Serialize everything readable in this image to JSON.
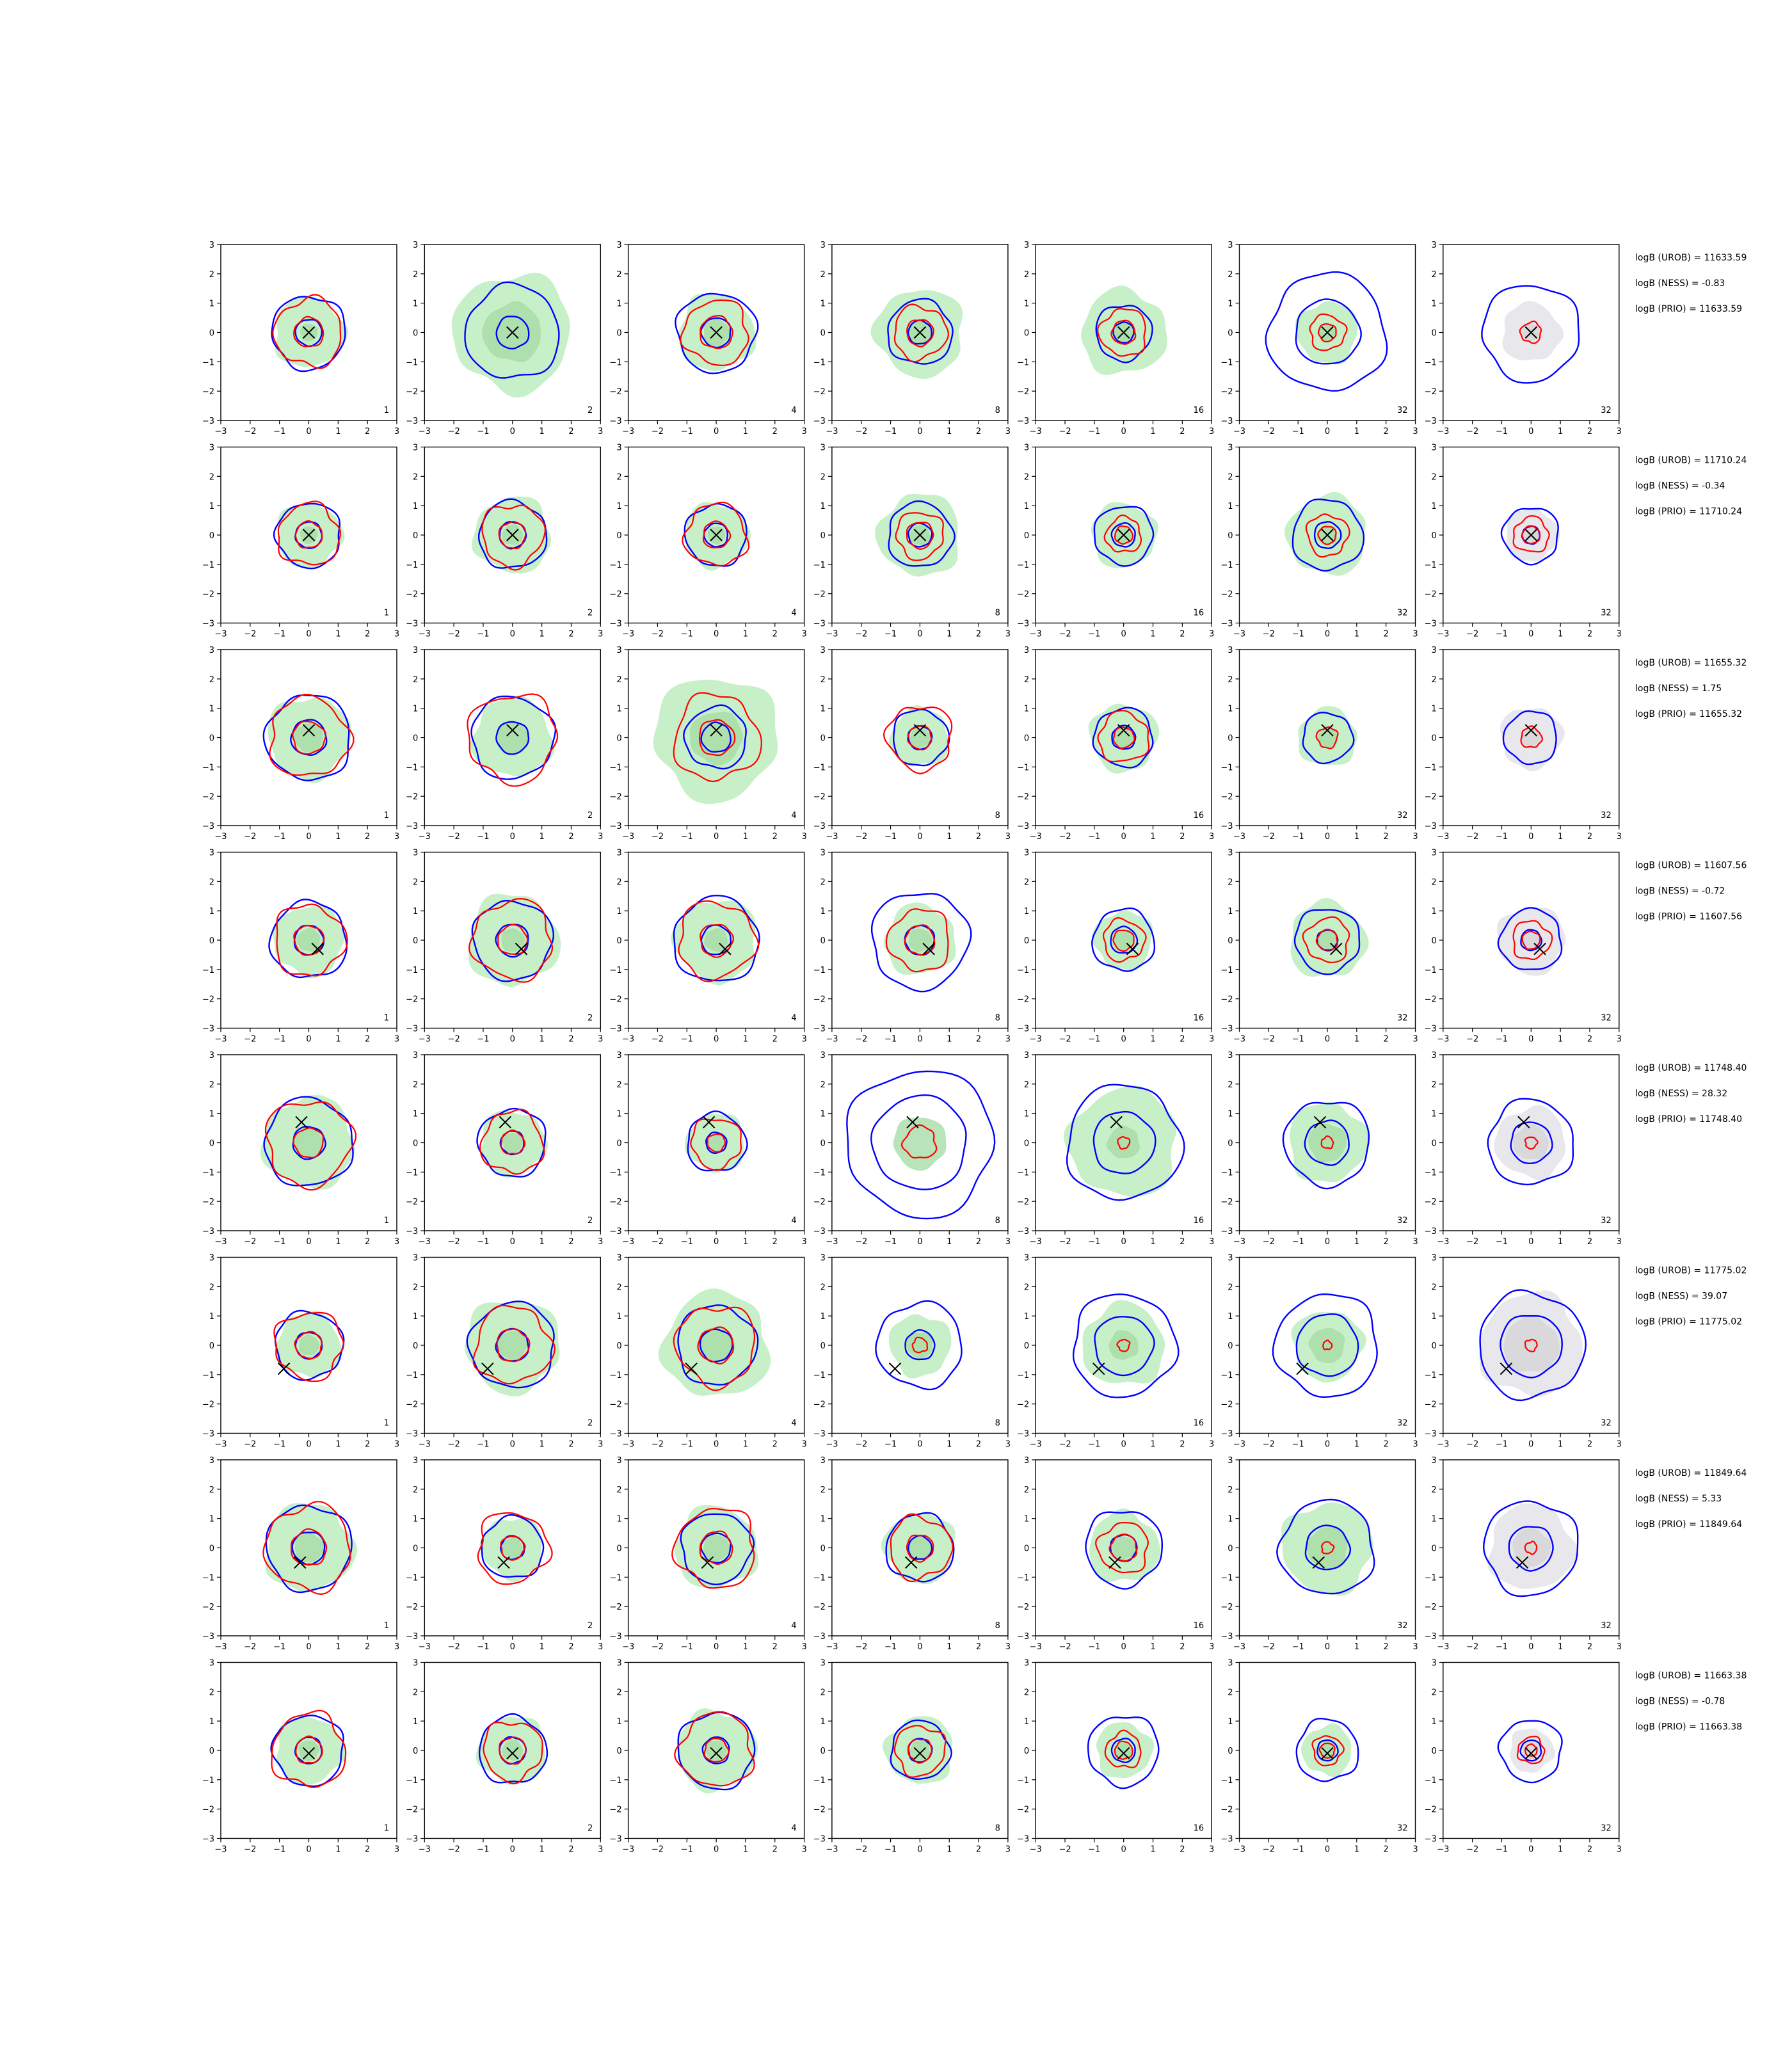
{
  "colors": {
    "red_contour": "#ff0000",
    "blue_contour": "#0000ff",
    "green_fill": "#c8f0c8",
    "green_inner": "#a8dca8",
    "grey_fill": "#e8e8ec",
    "grey_inner": "#d4d4d8",
    "marker": "#000000"
  },
  "chart_data": {
    "type": "contour-grid",
    "rows": 8,
    "cols": 7,
    "xlim": [
      -3,
      3
    ],
    "ylim": [
      -3,
      3
    ],
    "xticks": [
      "−3",
      "−2",
      "−1",
      "0",
      "1",
      "2",
      "3"
    ],
    "yticks": [
      "3",
      "2",
      "1",
      "0",
      "−1",
      "−2",
      "−3"
    ],
    "column_notes": [
      "1",
      "2",
      "4",
      "8",
      "16",
      "32",
      "32"
    ],
    "rows_data": [
      {
        "marker": [
          0.0,
          0.0
        ],
        "stats": [
          "logB (UROB) = 11633.59",
          "logB (NESS) = -0.83",
          "logB (PRIO) = 11633.59"
        ],
        "panels": [
          {
            "fill": "green",
            "fill_outer": 1.2,
            "fill_inner": 0.3,
            "blue_outer": 1.25,
            "blue_inner": 0.45,
            "red_outer": 1.15,
            "red_inner": 0.5
          },
          {
            "fill": "green",
            "fill_outer": 2.0,
            "fill_inner": 1.0,
            "blue_outer": 1.6,
            "blue_inner": 0.55,
            "red_outer": 0,
            "red_inner": 0
          },
          {
            "fill": "green",
            "fill_outer": 1.3,
            "fill_inner": 0.45,
            "blue_outer": 1.35,
            "blue_inner": 0.5,
            "red_outer": 1.1,
            "red_inner": 0.55
          },
          {
            "fill": "green",
            "fill_outer": 1.5,
            "fill_inner": 0.45,
            "blue_outer": 1.1,
            "blue_inner": 0.4,
            "red_outer": 0.9,
            "red_inner": 0.45
          },
          {
            "fill": "green",
            "fill_outer": 1.45,
            "fill_inner": 0.4,
            "blue_outer": 0.95,
            "blue_inner": 0.35,
            "red_outer": 0.8,
            "red_inner": 0.4
          },
          {
            "fill": "green",
            "fill_outer": 1.05,
            "fill_inner": 0.3,
            "blue_outer": 2.0,
            "blue_inner": 1.1,
            "red_outer": 0.6,
            "red_inner": 0.3
          },
          {
            "fill": "grey",
            "fill_outer": 1.0,
            "fill_inner": 0.3,
            "blue_outer": 1.65,
            "blue_inner": 0,
            "red_outer": 0.35,
            "red_inner": 0
          }
        ]
      },
      {
        "marker": [
          0.0,
          0.0
        ],
        "stats": [
          "logB (UROB) = 11710.24",
          "logB (NESS) = -0.34",
          "logB (PRIO) = 11710.24"
        ],
        "panels": [
          {
            "fill": "green",
            "fill_outer": 1.1,
            "fill_inner": 0.3,
            "blue_outer": 1.1,
            "blue_inner": 0.45,
            "red_outer": 1.05,
            "red_inner": 0.45
          },
          {
            "fill": "green",
            "fill_outer": 1.3,
            "fill_inner": 0.35,
            "blue_outer": 1.15,
            "blue_inner": 0.45,
            "red_outer": 1.05,
            "red_inner": 0.45
          },
          {
            "fill": "green",
            "fill_outer": 1.1,
            "fill_inner": 0.3,
            "blue_outer": 1.05,
            "blue_inner": 0.4,
            "red_outer": 1.05,
            "red_inner": 0.45
          },
          {
            "fill": "green",
            "fill_outer": 1.4,
            "fill_inner": 0.35,
            "blue_outer": 1.1,
            "blue_inner": 0.4,
            "red_outer": 0.8,
            "red_inner": 0.45
          },
          {
            "fill": "green",
            "fill_outer": 1.1,
            "fill_inner": 0.3,
            "blue_outer": 1.0,
            "blue_inner": 0.4,
            "red_outer": 0.6,
            "red_inner": 0.3
          },
          {
            "fill": "green",
            "fill_outer": 1.35,
            "fill_inner": 0.35,
            "blue_outer": 1.2,
            "blue_inner": 0.45,
            "red_outer": 0.7,
            "red_inner": 0.3
          },
          {
            "fill": "grey",
            "fill_outer": 0.9,
            "fill_inner": 0.3,
            "blue_outer": 0.95,
            "blue_inner": 0.3,
            "red_outer": 0.6,
            "red_inner": 0.3
          }
        ]
      },
      {
        "marker": [
          0.0,
          0.25
        ],
        "stats": [
          "logB (UROB) = 11655.32",
          "logB (NESS) = 1.75",
          "logB (PRIO) = 11655.32"
        ],
        "panels": [
          {
            "fill": "green",
            "fill_outer": 1.4,
            "fill_inner": 0.5,
            "blue_outer": 1.45,
            "blue_inner": 0.6,
            "red_outer": 1.35,
            "red_inner": 0.55
          },
          {
            "fill": "green",
            "fill_outer": 1.35,
            "fill_inner": 0.55,
            "blue_outer": 1.4,
            "blue_inner": 0.55,
            "red_outer": 1.5,
            "red_inner": 0
          },
          {
            "fill": "green",
            "fill_outer": 2.1,
            "fill_inner": 0.9,
            "blue_outer": 1.05,
            "blue_inner": 0.5,
            "red_outer": 1.45,
            "red_inner": 0.6
          },
          {
            "fill": "green",
            "fill_outer": 1.0,
            "fill_inner": 0.35,
            "blue_outer": 0.95,
            "blue_inner": 0.4,
            "red_outer": 1.1,
            "red_inner": 0.4
          },
          {
            "fill": "green",
            "fill_outer": 1.15,
            "fill_inner": 0.4,
            "blue_outer": 1.0,
            "blue_inner": 0.4,
            "red_outer": 0.85,
            "red_inner": 0.35
          },
          {
            "fill": "green",
            "fill_outer": 1.0,
            "fill_inner": 0.35,
            "blue_outer": 0.85,
            "blue_inner": 0,
            "red_outer": 0.35,
            "red_inner": 0
          },
          {
            "fill": "grey",
            "fill_outer": 1.05,
            "fill_inner": 0.35,
            "blue_outer": 0.9,
            "blue_inner": 0,
            "red_outer": 0.35,
            "red_inner": 0
          }
        ]
      },
      {
        "marker": [
          0.3,
          -0.3
        ],
        "stats": [
          "logB (UROB) = 11607.56",
          "logB (NESS) = -0.72",
          "logB (PRIO) = 11607.56"
        ],
        "panels": [
          {
            "fill": "green",
            "fill_outer": 1.2,
            "fill_inner": 0.4,
            "blue_outer": 1.3,
            "blue_inner": 0.5,
            "red_outer": 1.2,
            "red_inner": 0.5
          },
          {
            "fill": "green",
            "fill_outer": 1.55,
            "fill_inner": 0.4,
            "blue_outer": 1.35,
            "blue_inner": 0.55,
            "red_outer": 1.35,
            "red_inner": 0.5
          },
          {
            "fill": "green",
            "fill_outer": 1.4,
            "fill_inner": 0.4,
            "blue_outer": 1.45,
            "blue_inner": 0.5,
            "red_outer": 1.3,
            "red_inner": 0.55
          },
          {
            "fill": "green",
            "fill_outer": 1.2,
            "fill_inner": 0.4,
            "blue_outer": 1.65,
            "blue_inner": 0.5,
            "red_outer": 1.05,
            "red_inner": 0.5
          },
          {
            "fill": "green",
            "fill_outer": 1.0,
            "fill_inner": 0.35,
            "blue_outer": 1.05,
            "blue_inner": 0.45,
            "red_outer": 0.7,
            "red_inner": 0.35
          },
          {
            "fill": "green",
            "fill_outer": 1.3,
            "fill_inner": 0.35,
            "blue_outer": 1.1,
            "blue_inner": 0.35,
            "red_outer": 0.75,
            "red_inner": 0.35
          },
          {
            "fill": "grey",
            "fill_outer": 1.15,
            "fill_inner": 0.35,
            "blue_outer": 1.05,
            "blue_inner": 0.35,
            "red_outer": 0.65,
            "red_inner": 0.3
          }
        ]
      },
      {
        "marker": [
          -0.25,
          0.7
        ],
        "stats": [
          "logB (UROB) = 11748.40",
          "logB (NESS) = 28.32",
          "logB (PRIO) = 11748.40"
        ],
        "panels": [
          {
            "fill": "green",
            "fill_outer": 1.55,
            "fill_inner": 0.5,
            "blue_outer": 1.5,
            "blue_inner": 0.55,
            "red_outer": 1.45,
            "red_inner": 0.5
          },
          {
            "fill": "green",
            "fill_outer": 1.1,
            "fill_inner": 0.35,
            "blue_outer": 1.15,
            "blue_inner": 0.4,
            "red_outer": 1.05,
            "red_inner": 0.4
          },
          {
            "fill": "green",
            "fill_outer": 1.0,
            "fill_inner": 0.3,
            "blue_outer": 1.0,
            "blue_inner": 0.35,
            "red_outer": 0.85,
            "red_inner": 0.3
          },
          {
            "fill": "green",
            "fill_outer": 0,
            "fill_inner": 0.9,
            "blue_outer": 2.5,
            "blue_inner": 1.6,
            "red_outer": 0.55,
            "red_inner": 0
          },
          {
            "fill": "green",
            "fill_outer": 1.85,
            "fill_inner": 0.55,
            "blue_outer": 1.95,
            "blue_inner": 1.05,
            "red_outer": 0.2,
            "red_inner": 0
          },
          {
            "fill": "green",
            "fill_outer": 1.35,
            "fill_inner": 0.65,
            "blue_outer": 1.45,
            "blue_inner": 0.75,
            "red_outer": 0.2,
            "red_inner": 0
          },
          {
            "fill": "grey",
            "fill_outer": 1.2,
            "fill_inner": 0.6,
            "blue_outer": 1.45,
            "blue_inner": 0.7,
            "red_outer": 0.2,
            "red_inner": 0
          }
        ]
      },
      {
        "marker": [
          -0.85,
          -0.8
        ],
        "stats": [
          "logB (UROB) = 11775.02",
          "logB (NESS) = 39.07",
          "logB (PRIO) = 11775.02"
        ],
        "panels": [
          {
            "fill": "green",
            "fill_outer": 1.1,
            "fill_inner": 0.35,
            "blue_outer": 1.15,
            "blue_inner": 0.45,
            "red_outer": 1.15,
            "red_inner": 0.45
          },
          {
            "fill": "green",
            "fill_outer": 1.6,
            "fill_inner": 0.5,
            "blue_outer": 1.45,
            "blue_inner": 0.55,
            "red_outer": 1.3,
            "red_inner": 0.55
          },
          {
            "fill": "green",
            "fill_outer": 1.8,
            "fill_inner": 0.6,
            "blue_outer": 1.35,
            "blue_inner": 0.55,
            "red_outer": 1.35,
            "red_inner": 0.6
          },
          {
            "fill": "green",
            "fill_outer": 1.05,
            "fill_inner": 0.45,
            "blue_outer": 1.45,
            "blue_inner": 0.5,
            "red_outer": 0.25,
            "red_inner": 0
          },
          {
            "fill": "green",
            "fill_outer": 1.4,
            "fill_inner": 0.5,
            "blue_outer": 1.75,
            "blue_inner": 1.0,
            "red_outer": 0.2,
            "red_inner": 0
          },
          {
            "fill": "green",
            "fill_outer": 1.2,
            "fill_inner": 0.6,
            "blue_outer": 1.75,
            "blue_inner": 1.05,
            "red_outer": 0.15,
            "red_inner": 0
          },
          {
            "fill": "grey",
            "fill_outer": 1.75,
            "fill_inner": 0.95,
            "blue_outer": 1.8,
            "blue_inner": 1.05,
            "red_outer": 0.2,
            "red_inner": 0
          }
        ]
      },
      {
        "marker": [
          -0.3,
          -0.5
        ],
        "stats": [
          "logB (UROB) = 11849.64",
          "logB (NESS) = 5.33",
          "logB (PRIO) = 11849.64"
        ],
        "panels": [
          {
            "fill": "green",
            "fill_outer": 1.5,
            "fill_inner": 0.5,
            "blue_outer": 1.45,
            "blue_inner": 0.55,
            "red_outer": 1.45,
            "red_inner": 0.6
          },
          {
            "fill": "green",
            "fill_outer": 1.05,
            "fill_inner": 0.35,
            "blue_outer": 1.05,
            "blue_inner": 0.4,
            "red_outer": 1.2,
            "red_inner": 0.4
          },
          {
            "fill": "green",
            "fill_outer": 1.4,
            "fill_inner": 0.45,
            "blue_outer": 1.2,
            "blue_inner": 0.5,
            "red_outer": 1.35,
            "red_inner": 0.55
          },
          {
            "fill": "green",
            "fill_outer": 1.2,
            "fill_inner": 0.4,
            "blue_outer": 1.15,
            "blue_inner": 0.4,
            "red_outer": 1.05,
            "red_inner": 0.45
          },
          {
            "fill": "green",
            "fill_outer": 1.2,
            "fill_inner": 0.4,
            "blue_outer": 1.3,
            "blue_inner": 0.45,
            "red_outer": 0.85,
            "red_inner": 0.45
          },
          {
            "fill": "green",
            "fill_outer": 1.55,
            "fill_inner": 0.7,
            "blue_outer": 1.6,
            "blue_inner": 0.75,
            "red_outer": 0.2,
            "red_inner": 0
          },
          {
            "fill": "grey",
            "fill_outer": 1.45,
            "fill_inner": 0.65,
            "blue_outer": 1.6,
            "blue_inner": 0.75,
            "red_outer": 0.2,
            "red_inner": 0
          }
        ]
      },
      {
        "marker": [
          0.0,
          -0.1
        ],
        "stats": [
          "logB (UROB) = 11663.38",
          "logB (NESS) = -0.78",
          "logB (PRIO) = 11663.38"
        ],
        "panels": [
          {
            "fill": "green",
            "fill_outer": 1.15,
            "fill_inner": 0.35,
            "blue_outer": 1.2,
            "blue_inner": 0.45,
            "red_outer": 1.25,
            "red_inner": 0.45
          },
          {
            "fill": "green",
            "fill_outer": 1.15,
            "fill_inner": 0.35,
            "blue_outer": 1.15,
            "blue_inner": 0.45,
            "red_outer": 1.0,
            "red_inner": 0.45
          },
          {
            "fill": "green",
            "fill_outer": 1.35,
            "fill_inner": 0.35,
            "blue_outer": 1.3,
            "blue_inner": 0.45,
            "red_outer": 1.25,
            "red_inner": 0.4
          },
          {
            "fill": "green",
            "fill_outer": 1.15,
            "fill_inner": 0.35,
            "blue_outer": 1.0,
            "blue_inner": 0.4,
            "red_outer": 0.85,
            "red_inner": 0.4
          },
          {
            "fill": "green",
            "fill_outer": 0.95,
            "fill_inner": 0.3,
            "blue_outer": 1.2,
            "blue_inner": 0.4,
            "red_outer": 0.6,
            "red_inner": 0.3
          },
          {
            "fill": "green",
            "fill_outer": 0.85,
            "fill_inner": 0.3,
            "blue_outer": 1.05,
            "blue_inner": 0.35,
            "red_outer": 0.5,
            "red_inner": 0.25
          },
          {
            "fill": "grey",
            "fill_outer": 0.75,
            "fill_inner": 0.3,
            "blue_outer": 1.05,
            "blue_inner": 0.35,
            "red_outer": 0.45,
            "red_inner": 0.2
          }
        ]
      }
    ]
  }
}
